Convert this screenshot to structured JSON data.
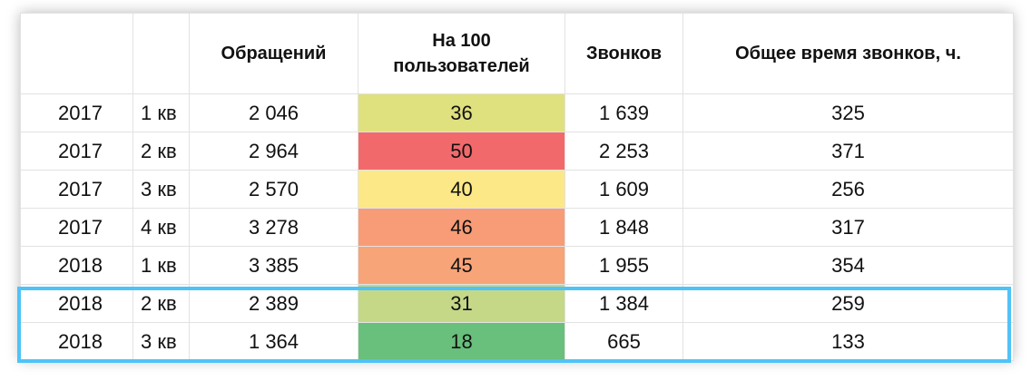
{
  "table": {
    "headers": [
      "",
      "",
      "Обращений",
      "На 100\nпользователей",
      "Звонков",
      "Общее время звонков, ч."
    ],
    "rows": [
      {
        "year": "2017",
        "quarter": "1 кв",
        "requests": "2 046",
        "per100": "36",
        "calls": "1 639",
        "hours": "325",
        "per100_color": "#dfe07e"
      },
      {
        "year": "2017",
        "quarter": "2 кв",
        "requests": "2 964",
        "per100": "50",
        "calls": "2 253",
        "hours": "371",
        "per100_color": "#f2696b"
      },
      {
        "year": "2017",
        "quarter": "3 кв",
        "requests": "2 570",
        "per100": "40",
        "calls": "1 609",
        "hours": "256",
        "per100_color": "#fde888"
      },
      {
        "year": "2017",
        "quarter": "4 кв",
        "requests": "3 278",
        "per100": "46",
        "calls": "1 848",
        "hours": "317",
        "per100_color": "#f79c76"
      },
      {
        "year": "2018",
        "quarter": "1 кв",
        "requests": "3 385",
        "per100": "45",
        "calls": "1 955",
        "hours": "354",
        "per100_color": "#f8a479"
      },
      {
        "year": "2018",
        "quarter": "2 кв",
        "requests": "2 389",
        "per100": "31",
        "calls": "1 384",
        "hours": "259",
        "per100_color": "#c5d888"
      },
      {
        "year": "2018",
        "quarter": "3 кв",
        "requests": "1 364",
        "per100": "18",
        "calls": "665",
        "hours": "133",
        "per100_color": "#69bf7c"
      }
    ]
  },
  "colors": {
    "highlight_border": "#4fc3f7",
    "grid": "#e2e2e2"
  }
}
